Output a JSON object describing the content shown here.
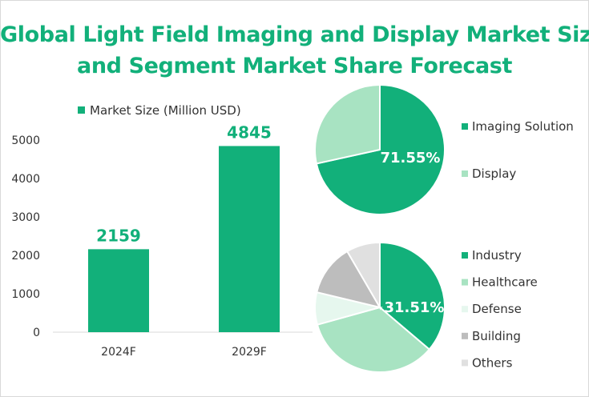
{
  "chart_data": [
    {
      "type": "bar",
      "title": "Global Light Field Imaging and Display Market Size and Segment Market Share Forecast",
      "title_lines": [
        "Global Light Field Imaging and Display Market Size",
        "and Segment Market Share Forecast"
      ],
      "categories": [
        "2024F",
        "2029F"
      ],
      "series": [
        {
          "name": "Market Size (Million USD)",
          "values": [
            2159,
            4845
          ]
        }
      ],
      "data_labels": [
        "2159",
        "4845"
      ],
      "ylim": [
        0,
        5000
      ],
      "yticks": [
        0,
        1000,
        2000,
        3000,
        4000,
        5000
      ],
      "ytick_labels": [
        "0",
        "1000",
        "2000",
        "3000",
        "4000",
        "5000"
      ],
      "xlabel": "",
      "ylabel": "",
      "grid": false,
      "color": "#12b07a"
    },
    {
      "type": "pie",
      "labels": [
        "Imaging Solution",
        "Display"
      ],
      "values": [
        71.55,
        28.45
      ],
      "colors": [
        "#12b07a",
        "#a8e3c2"
      ],
      "highlight_label": "71.55%"
    },
    {
      "type": "pie",
      "labels": [
        "Industry",
        "Healthcare",
        "Defense",
        "Building",
        "Others"
      ],
      "values": [
        31.51,
        30.0,
        7.0,
        11.2,
        7.3
      ],
      "colors": [
        "#12b07a",
        "#a8e3c2",
        "#e6f7ee",
        "#bdbdbd",
        "#e0e0e0"
      ],
      "highlight_label": "31.51%"
    }
  ]
}
